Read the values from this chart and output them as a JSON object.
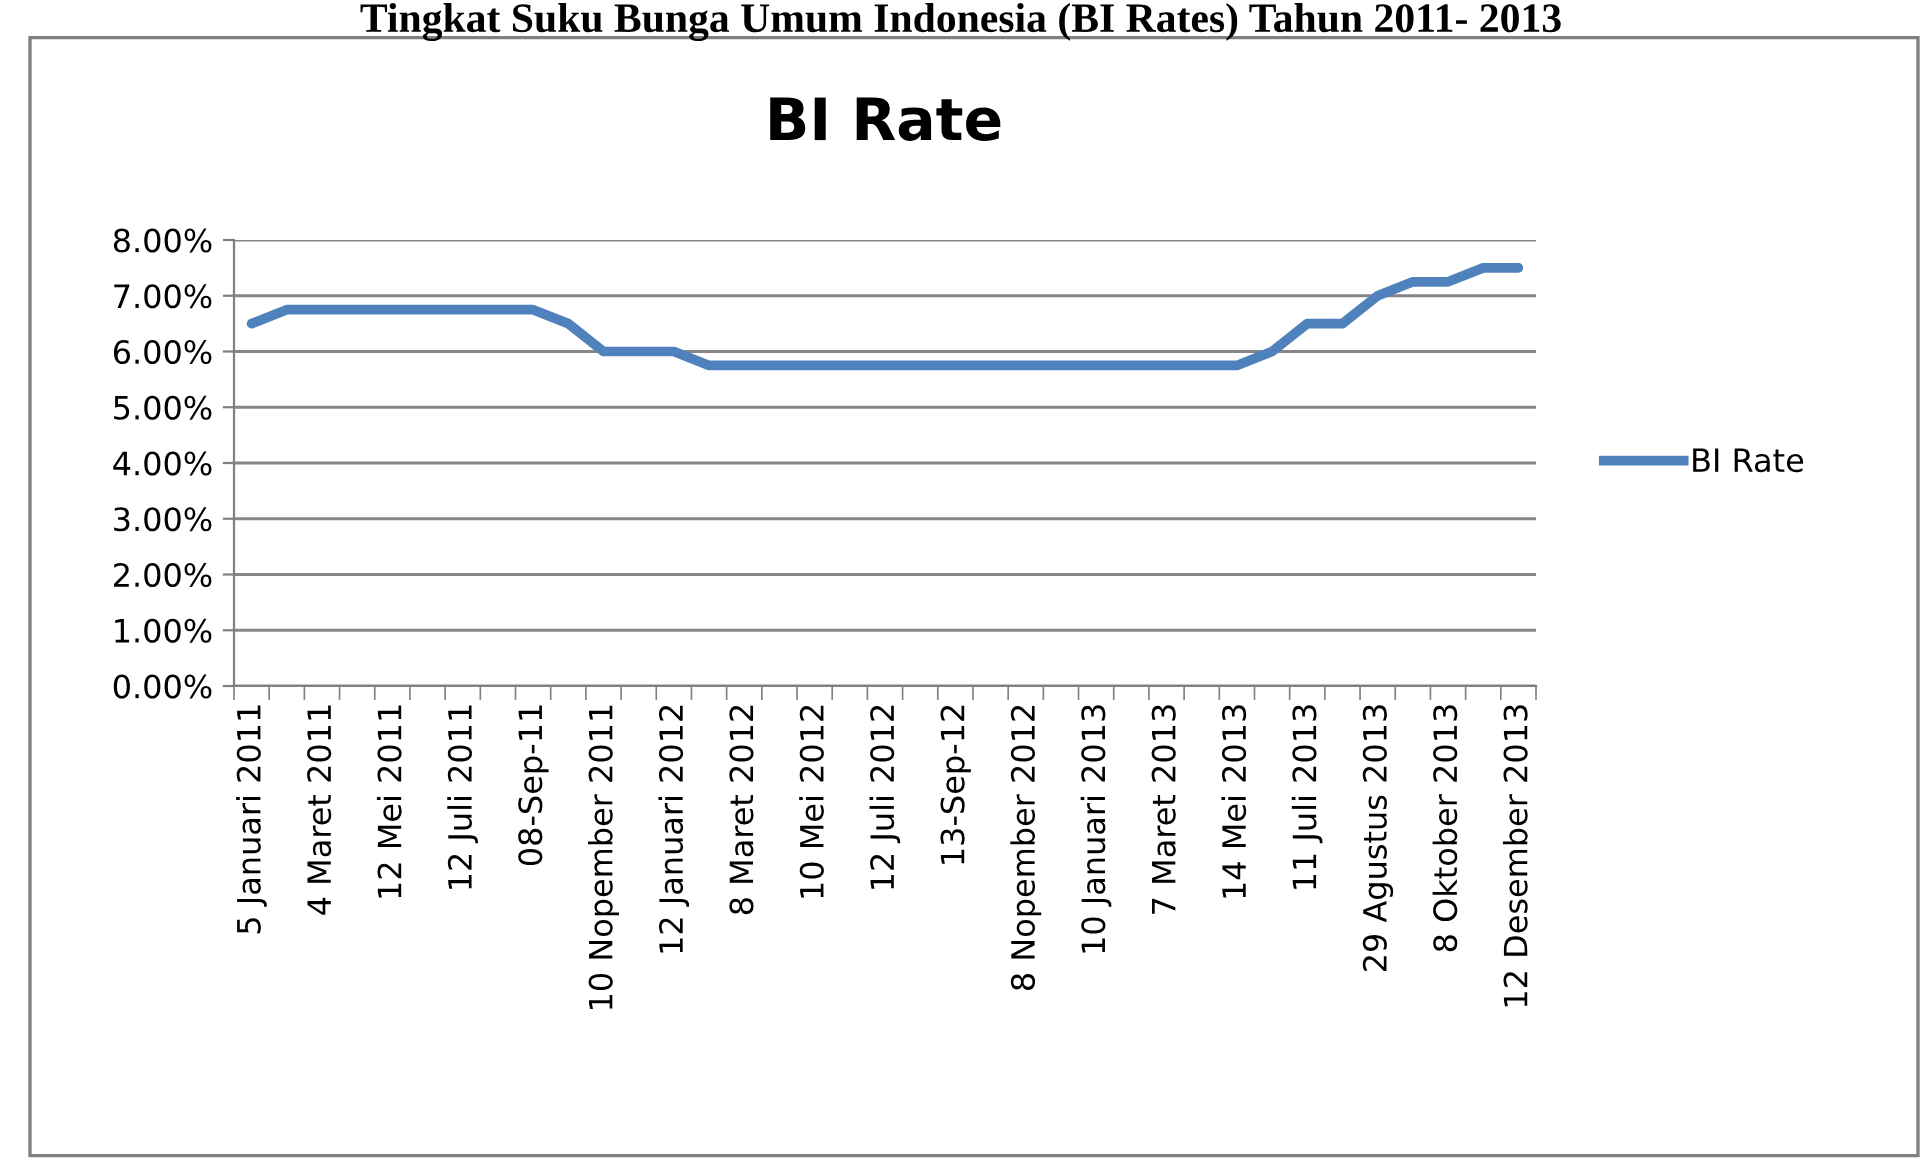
{
  "chart_data": {
    "type": "line",
    "title": "Tingkat Suku Bunga Umum Indonesia (BI Rates) Tahun 2011- 2013",
    "subtitle": "BI Rate",
    "categories": [
      "5 Januari 2011",
      null,
      "4 Maret 2011",
      null,
      "12 Mei 2011",
      null,
      "12 Juli 2011",
      null,
      "08-Sep-11",
      null,
      "10 Nopember 2011",
      null,
      "12 Januari 2012",
      null,
      "8 Maret 2012",
      null,
      "10 Mei 2012",
      null,
      "12 Juli 2012",
      null,
      "13-Sep-12",
      null,
      "8 Nopember 2012",
      null,
      "10 Januari 2013",
      null,
      "7 Maret 2013",
      null,
      "14 Mei 2013",
      null,
      "11 Juli 2013",
      null,
      "29 Agustus 2013",
      null,
      "8 Oktober 2013",
      null,
      "12 Desember 2013"
    ],
    "series": [
      {
        "name": "BI Rate",
        "color": "#4f81bd",
        "values": [
          6.5,
          6.75,
          6.75,
          6.75,
          6.75,
          6.75,
          6.75,
          6.75,
          6.75,
          6.5,
          6.0,
          6.0,
          6.0,
          5.75,
          5.75,
          5.75,
          5.75,
          5.75,
          5.75,
          5.75,
          5.75,
          5.75,
          5.75,
          5.75,
          5.75,
          5.75,
          5.75,
          5.75,
          5.75,
          6.0,
          6.5,
          6.5,
          7.0,
          7.25,
          7.25,
          7.5,
          7.5
        ]
      }
    ],
    "ylim": [
      0,
      8
    ],
    "yticks": [
      {
        "value": 0,
        "label": "0.00%"
      },
      {
        "value": 1,
        "label": "1.00%"
      },
      {
        "value": 2,
        "label": "2.00%"
      },
      {
        "value": 3,
        "label": "3.00%"
      },
      {
        "value": 4,
        "label": "4.00%"
      },
      {
        "value": 5,
        "label": "5.00%"
      },
      {
        "value": 6,
        "label": "6.00%"
      },
      {
        "value": 7,
        "label": "7.00%"
      },
      {
        "value": 8,
        "label": "8.00%"
      }
    ],
    "grid": "y",
    "legend": "right",
    "marker": "none",
    "line_style": "solid"
  }
}
